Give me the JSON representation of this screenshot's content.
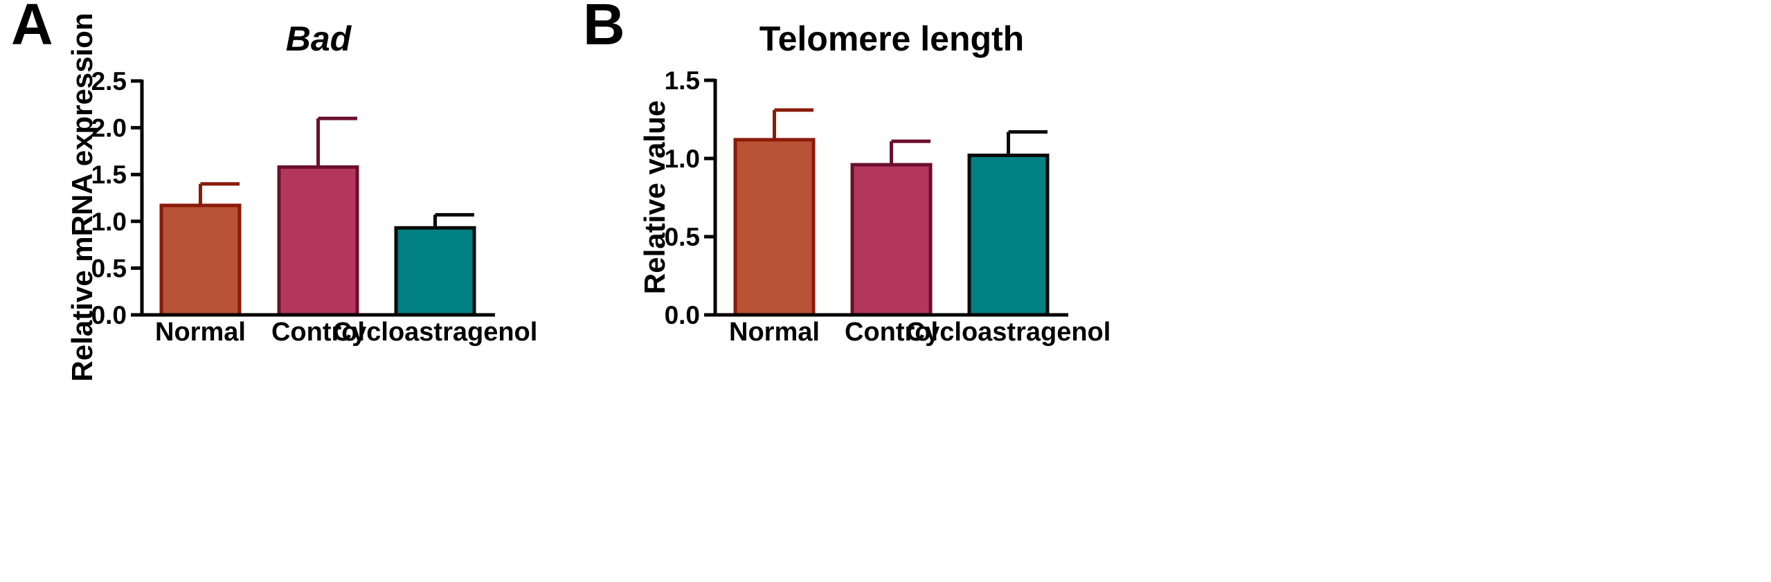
{
  "chart_data": [
    {
      "panel": "A",
      "type": "bar",
      "title": "Bad",
      "title_italic": true,
      "xlabel": "",
      "ylabel": "Relative mRNA expression",
      "ylim": [
        0,
        2.5
      ],
      "yticks": [
        "0.0",
        "0.5",
        "1.0",
        "1.5",
        "2.0",
        "2.5"
      ],
      "categories": [
        "Normal",
        "Control",
        "Cycloastragenol"
      ],
      "values": [
        1.17,
        1.58,
        0.93
      ],
      "errors": [
        0.23,
        0.52,
        0.14
      ],
      "fill_colors": [
        "#B85335",
        "#B3375D",
        "#008080"
      ],
      "edge_colors": [
        "#8B1A0A",
        "#6B0F2E",
        "#0A0A0A"
      ],
      "grid": false
    },
    {
      "panel": "B",
      "type": "bar",
      "title": "Telomere length",
      "title_italic": false,
      "xlabel": "",
      "ylabel": "Relative value",
      "ylim": [
        0,
        1.5
      ],
      "yticks": [
        "0.0",
        "0.5",
        "1.0",
        "1.5"
      ],
      "categories": [
        "Normal",
        "Control",
        "Cycloastragenol"
      ],
      "values": [
        1.12,
        0.96,
        1.02
      ],
      "errors": [
        0.19,
        0.15,
        0.15
      ],
      "fill_colors": [
        "#B85335",
        "#B3375D",
        "#008080"
      ],
      "edge_colors": [
        "#8B1A0A",
        "#6B0F2E",
        "#0A0A0A"
      ],
      "grid": false
    }
  ]
}
